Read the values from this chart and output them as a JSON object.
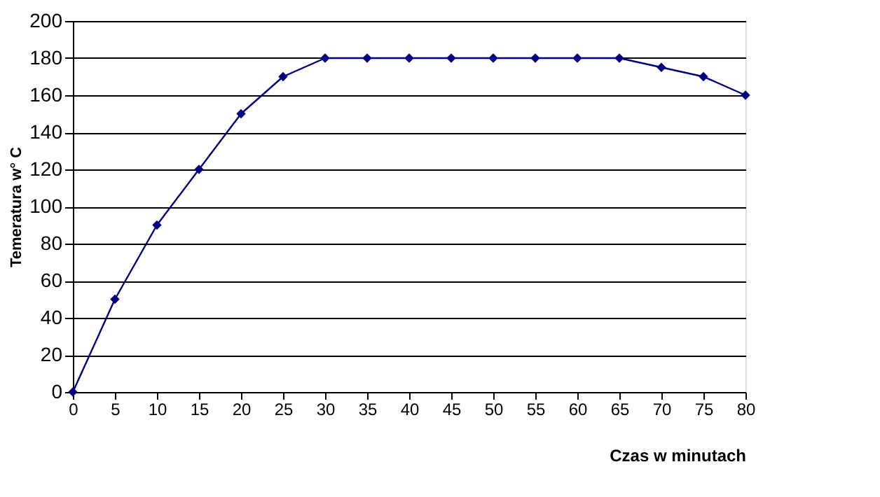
{
  "chart_data": {
    "type": "line",
    "xlabel": "Czas w minutach",
    "ylabel": "Temeratura w° C",
    "x": [
      0,
      5,
      10,
      15,
      20,
      25,
      30,
      35,
      40,
      45,
      50,
      55,
      60,
      65,
      70,
      75,
      80
    ],
    "series": [
      {
        "color": "#000080",
        "values": [
          0,
          50,
          90,
          120,
          150,
          170,
          180,
          180,
          180,
          180,
          180,
          180,
          180,
          180,
          175,
          170,
          160
        ]
      }
    ],
    "xlim": [
      0,
      80
    ],
    "xticks": [
      0,
      5,
      10,
      15,
      20,
      25,
      30,
      35,
      40,
      45,
      50,
      55,
      60,
      65,
      70,
      75,
      80
    ],
    "ylim": [
      0,
      200
    ],
    "yticks": [
      0,
      20,
      40,
      60,
      80,
      100,
      120,
      140,
      160,
      180,
      200
    ],
    "grid": "y",
    "marker": "diamond",
    "line_style": "solid"
  }
}
